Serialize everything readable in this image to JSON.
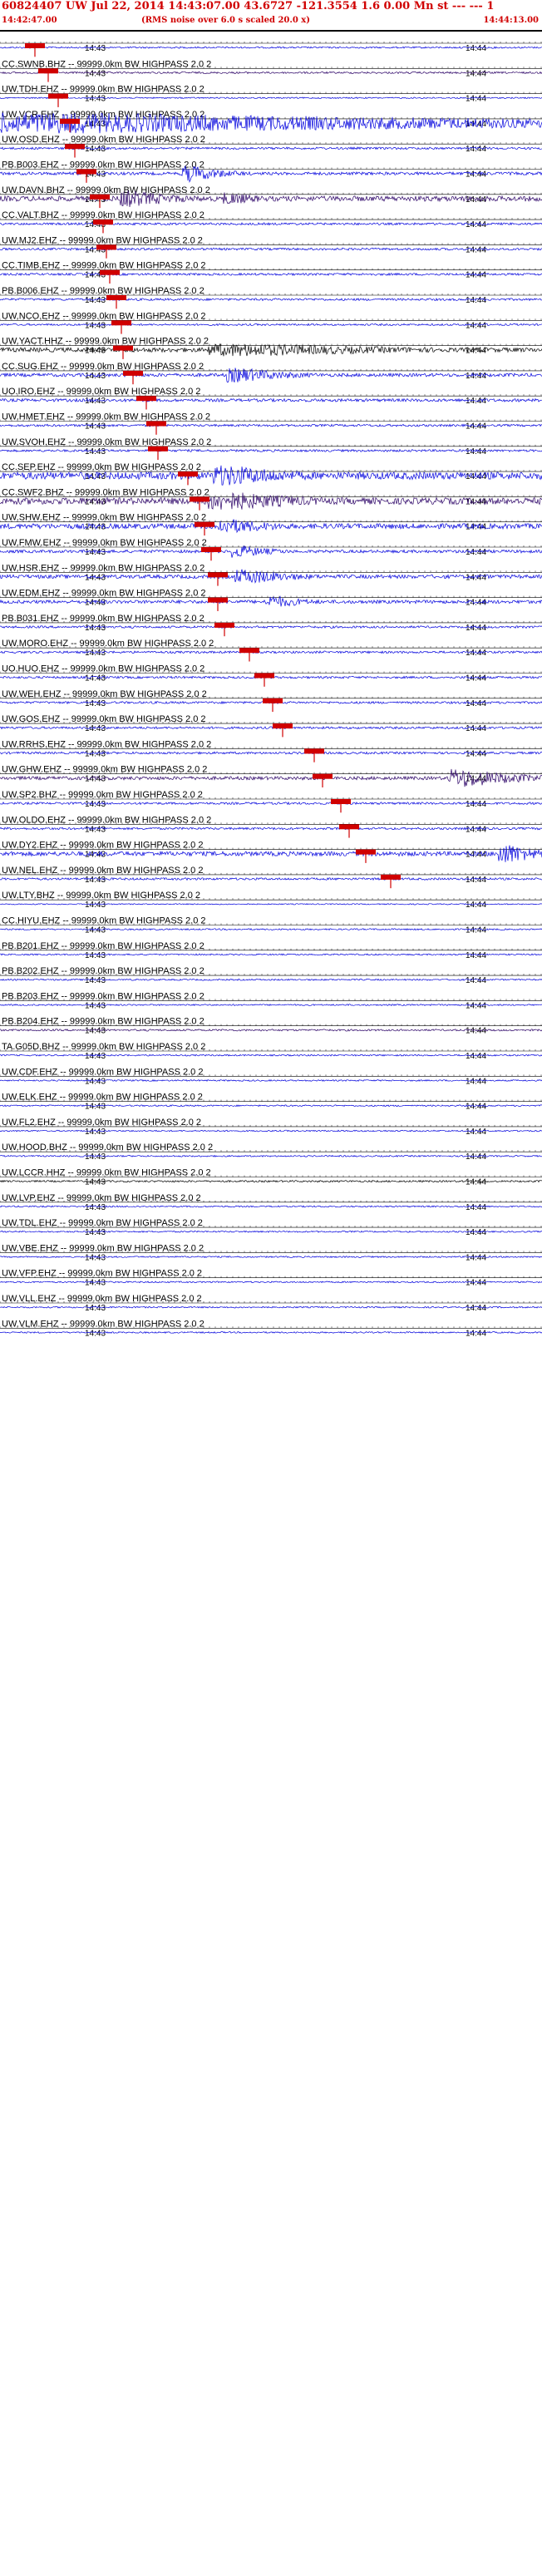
{
  "header": {
    "title": "60824407 UW Jul 22, 2014 14:43:07.00   43.6727 -121.3554  1.6 0.00 Mn st --- --- 1",
    "subtitle": "(RMS noise over 6.0 s scaled 20.0 x)",
    "start_time": "14:42:47.00",
    "end_time": "14:44:13.00"
  },
  "tick_labels": {
    "left": "14:43",
    "right": "14:44"
  },
  "colors": {
    "trace_blue": "#0000dd",
    "trace_dark": "#2a0066",
    "trace_black": "#000000",
    "pick_red": "#d00000",
    "title_red": "#d00000"
  },
  "traces": [
    {
      "label": "",
      "color": "blue",
      "amp": 0.22
    },
    {
      "label": "CC.SWNB.BHZ -- 99999.0km BW  HIGHPASS  2.0  2",
      "color": "dark",
      "amp": 0.25
    },
    {
      "label": "UW.TDH.EHZ -- 99999.0km BW  HIGHPASS  2.0  2",
      "color": "blue",
      "amp": 0.18
    },
    {
      "label": "UW.VCR.EHZ -- 99999.0km BW  HIGHPASS  2.0  2",
      "color": "blue",
      "amp": 0.95
    },
    {
      "label": "UW.OSD.EHZ -- 99999.0km BW  HIGHPASS  2.0  2",
      "color": "blue",
      "amp": 0.3
    },
    {
      "label": "PB.B003.EHZ -- 99999.0km BW  HIGHPASS  2.0  2",
      "color": "blue",
      "amp": 0.4
    },
    {
      "label": "UW.DAVN.BHZ -- 99999.0km BW  HIGHPASS  2.0  2",
      "color": "dark",
      "amp": 0.7
    },
    {
      "label": "CC.VALT.BHZ -- 99999.0km BW  HIGHPASS  2.0  2",
      "color": "blue",
      "amp": 0.3
    },
    {
      "label": "UW.MJ2.EHZ -- 99999.0km BW  HIGHPASS  2.0  2",
      "color": "blue",
      "amp": 0.3
    },
    {
      "label": "CC.TIMB.EHZ -- 99999.0km BW  HIGHPASS  2.0  2",
      "color": "blue",
      "amp": 0.3
    },
    {
      "label": "PB.B006.EHZ -- 99999.0km BW  HIGHPASS  2.0  2",
      "color": "blue",
      "amp": 0.3
    },
    {
      "label": "UW.NCO.EHZ -- 99999.0km BW  HIGHPASS  2.0  2",
      "color": "blue",
      "amp": 0.25
    },
    {
      "label": "UW.YACT.HHZ -- 99999.0km BW  HIGHPASS  2.0  2",
      "color": "black",
      "amp": 0.6
    },
    {
      "label": "CC.SUG.EHZ -- 99999.0km BW  HIGHPASS  2.0  2",
      "color": "blue",
      "amp": 0.45
    },
    {
      "label": "UO.IRO.EHZ -- 99999.0km BW  HIGHPASS  2.0  2",
      "color": "blue",
      "amp": 0.4
    },
    {
      "label": "UW.HMET.EHZ -- 99999.0km BW  HIGHPASS  2.0  2",
      "color": "blue",
      "amp": 0.3
    },
    {
      "label": "UW.SVOH.EHZ -- 99999.0km BW  HIGHPASS  2.0  2",
      "color": "blue",
      "amp": 0.3
    },
    {
      "label": "CC.SEP.EHZ -- 99999.0km BW  HIGHPASS  2.0  2",
      "color": "blue",
      "amp": 1.0
    },
    {
      "label": "CC.SWF2.BHZ -- 99999.0km BW  HIGHPASS  2.0  2",
      "color": "dark",
      "amp": 0.9
    },
    {
      "label": "UW.SHW.EHZ -- 99999.0km BW  HIGHPASS  2.0  2",
      "color": "blue",
      "amp": 0.7
    },
    {
      "label": "UW.FMW.EHZ -- 99999.0km BW  HIGHPASS  2.0  2",
      "color": "blue",
      "amp": 0.4
    },
    {
      "label": "UW.HSR.EHZ -- 99999.0km BW  HIGHPASS  2.0  2",
      "color": "blue",
      "amp": 0.5
    },
    {
      "label": "UW.EDM.EHZ -- 99999.0km BW  HIGHPASS  2.0  2",
      "color": "blue",
      "amp": 0.45
    },
    {
      "label": "PB.B031.EHZ -- 99999.0km BW  HIGHPASS  2.0  2",
      "color": "blue",
      "amp": 0.3
    },
    {
      "label": "UW.MORO.EHZ -- 99999.0km BW  HIGHPASS  2.0  2",
      "color": "blue",
      "amp": 0.3
    },
    {
      "label": "UO.HUO.EHZ -- 99999.0km BW  HIGHPASS  2.0  2",
      "color": "blue",
      "amp": 0.3
    },
    {
      "label": "UW.WEH.EHZ -- 99999.0km BW  HIGHPASS  2.0  2",
      "color": "blue",
      "amp": 0.3
    },
    {
      "label": "UW.GOS.EHZ -- 99999.0km BW  HIGHPASS  2.0  2",
      "color": "blue",
      "amp": 0.3
    },
    {
      "label": "UW.RRHS.EHZ -- 99999.0km BW  HIGHPASS  2.0  2",
      "color": "blue",
      "amp": 0.3
    },
    {
      "label": "UW.GHW.EHZ -- 99999.0km BW  HIGHPASS  2.0  2",
      "color": "dark",
      "amp": 0.45
    },
    {
      "label": "UW.SP2.BHZ -- 99999.0km BW  HIGHPASS  2.0  2",
      "color": "blue",
      "amp": 0.3
    },
    {
      "label": "UW.OLDO.EHZ -- 99999.0km BW  HIGHPASS  2.0  2",
      "color": "blue",
      "amp": 0.3
    },
    {
      "label": "UW.DY2.EHZ -- 99999.0km BW  HIGHPASS  2.0  2",
      "color": "blue",
      "amp": 0.6
    },
    {
      "label": "UW.NEL.EHZ -- 99999.0km BW  HIGHPASS  2.0  2",
      "color": "blue",
      "amp": 0.3
    },
    {
      "label": "UW.LTY.BHZ -- 99999.0km BW  HIGHPASS  2.0  2",
      "color": "blue",
      "amp": 0.15
    },
    {
      "label": "CC.HIYU.EHZ -- 99999.0km BW  HIGHPASS  2.0  2",
      "color": "blue",
      "amp": 0.2
    },
    {
      "label": "PB.B201.EHZ -- 99999.0km BW  HIGHPASS  2.0  2",
      "color": "blue",
      "amp": 0.2
    },
    {
      "label": "PB.B202.EHZ -- 99999.0km BW  HIGHPASS  2.0  2",
      "color": "blue",
      "amp": 0.2
    },
    {
      "label": "PB.B203.EHZ -- 99999.0km BW  HIGHPASS  2.0  2",
      "color": "blue",
      "amp": 0.2
    },
    {
      "label": "PB.B204.EHZ -- 99999.0km BW  HIGHPASS  2.0  2",
      "color": "dark",
      "amp": 0.25
    },
    {
      "label": "TA.G05D.BHZ -- 99999.0km BW  HIGHPASS  2.0  2",
      "color": "blue",
      "amp": 0.2
    },
    {
      "label": "UW.CDF.EHZ -- 99999.0km BW  HIGHPASS  2.0  2",
      "color": "blue",
      "amp": 0.2
    },
    {
      "label": "UW.ELK.EHZ -- 99999.0km BW  HIGHPASS  2.0  2",
      "color": "blue",
      "amp": 0.2
    },
    {
      "label": "UW.FL2.EHZ -- 99999.0km BW  HIGHPASS  2.0  2",
      "color": "blue",
      "amp": 0.2
    },
    {
      "label": "UW.HOOD.BHZ -- 99999.0km BW  HIGHPASS  2.0  2",
      "color": "blue",
      "amp": 0.2
    },
    {
      "label": "UW.LCCR.HHZ -- 99999.0km BW  HIGHPASS  2.0  2",
      "color": "black",
      "amp": 0.25
    },
    {
      "label": "UW.LVP.EHZ -- 99999.0km BW  HIGHPASS  2.0  2",
      "color": "blue",
      "amp": 0.2
    },
    {
      "label": "UW.TDL.EHZ -- 99999.0km BW  HIGHPASS  2.0  2",
      "color": "blue",
      "amp": 0.2
    },
    {
      "label": "UW.VBE.EHZ -- 99999.0km BW  HIGHPASS  2.0  2",
      "color": "blue",
      "amp": 0.2
    },
    {
      "label": "UW.VFP.EHZ -- 99999.0km BW  HIGHPASS  2.0  2",
      "color": "blue",
      "amp": 0.2
    },
    {
      "label": "UW.VLL.EHZ -- 99999.0km BW  HIGHPASS  2.0  2",
      "color": "blue",
      "amp": 0.2
    },
    {
      "label": "UW.VLM.EHZ -- 99999.0km BW  HIGHPASS  2.0  2",
      "color": "blue",
      "amp": 0.2
    }
  ]
}
